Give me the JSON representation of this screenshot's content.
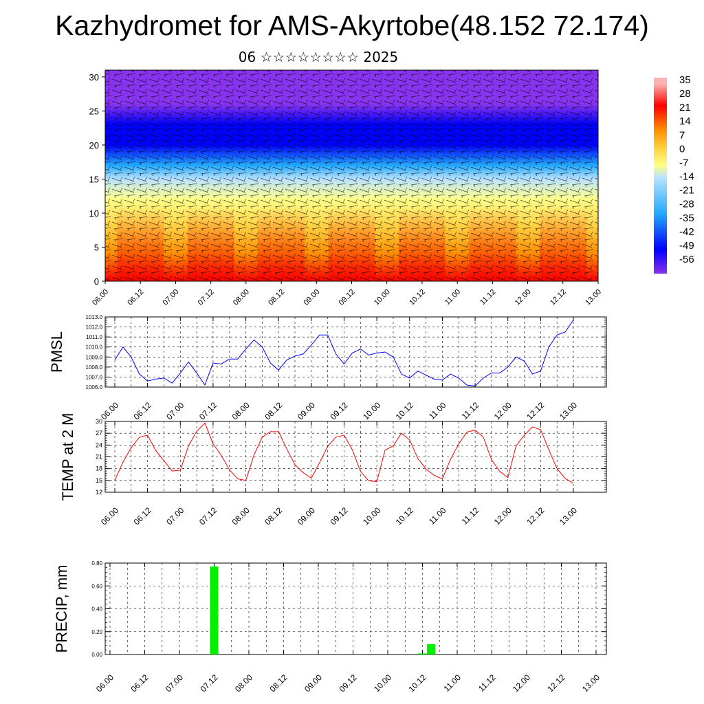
{
  "title": "Kazhydromet for AMS-Akyrtobe(48.152 72.174)",
  "subtitle": "06 ☆☆☆☆☆☆☆☆ 2025",
  "time_ticks": [
    "06.00",
    "06.12",
    "07.00",
    "07.12",
    "08.00",
    "08.12",
    "09.00",
    "09.12",
    "10.00",
    "10.12",
    "11.00",
    "11.12",
    "12.00",
    "12.12",
    "13.00"
  ],
  "chart_data": [
    {
      "type": "heatmap",
      "name": "cross-section",
      "x_ticks": [
        "06.00",
        "06.12",
        "07.00",
        "07.12",
        "08.00",
        "08.12",
        "09.00",
        "09.12",
        "10.00",
        "10.12",
        "11.00",
        "11.12",
        "12.00",
        "12.12",
        "13.00"
      ],
      "y_ticks": [
        0,
        5,
        10,
        15,
        20,
        25,
        30
      ],
      "ylim": [
        0,
        31
      ],
      "overlay": "wind barbs",
      "colorbar": {
        "labels": [
          35,
          28,
          21,
          14,
          7,
          0,
          -7,
          -14,
          -21,
          -28,
          -35,
          -42,
          -49,
          -56
        ],
        "range": [
          -60,
          38
        ],
        "colors": {
          "hot": "#ff0000",
          "warm": "#ff8c00",
          "neutral": "#ffff88",
          "cool": "#22aaff",
          "cold": "#0000ff",
          "coldest": "#8833ee",
          "top": "#ffb3b3"
        }
      },
      "level_temps": [
        {
          "y": 0,
          "value": 30
        },
        {
          "y": 4,
          "value": 22
        },
        {
          "y": 8,
          "value": 10
        },
        {
          "y": 12,
          "value": 2
        },
        {
          "y": 15,
          "value": -8
        },
        {
          "y": 17,
          "value": -22
        },
        {
          "y": 20,
          "value": -32
        },
        {
          "y": 23,
          "value": -42
        },
        {
          "y": 26,
          "value": -52
        },
        {
          "y": 31,
          "value": -58
        }
      ],
      "diurnal_warm_days": [
        "06.12",
        "07.12",
        "08.12",
        "09.12",
        "10.12",
        "11.12",
        "12.12"
      ]
    },
    {
      "type": "line",
      "name": "PMSL",
      "ylabel": "PMSL",
      "ylim": [
        1006.0,
        1013.0
      ],
      "y_ticks": [
        "1006.0",
        "1007.0",
        "1008.0",
        "1009.0",
        "1010.0",
        "1011.0",
        "1012.0",
        "1013.0"
      ],
      "x": [
        0,
        3,
        6,
        9,
        12,
        15,
        18,
        21,
        24,
        27,
        30,
        33,
        36,
        39,
        42,
        45,
        48,
        51,
        54,
        57,
        60,
        63,
        66,
        69,
        72,
        75,
        78,
        81,
        84,
        87,
        90,
        93,
        96,
        99,
        102,
        105,
        108,
        111,
        114,
        117,
        120,
        123,
        126,
        129,
        132,
        135,
        138,
        141,
        144,
        147,
        150,
        153,
        156,
        159,
        162,
        165,
        168
      ],
      "values": [
        1008.7,
        1010.0,
        1009.0,
        1007.3,
        1006.6,
        1006.8,
        1006.9,
        1006.4,
        1007.4,
        1008.5,
        1007.4,
        1006.2,
        1008.4,
        1008.3,
        1008.8,
        1008.8,
        1009.8,
        1010.7,
        1010.0,
        1008.4,
        1007.7,
        1008.7,
        1009.1,
        1009.3,
        1010.2,
        1011.2,
        1011.2,
        1009.3,
        1008.3,
        1009.4,
        1009.8,
        1009.2,
        1009.4,
        1009.5,
        1009.0,
        1007.3,
        1006.9,
        1007.6,
        1007.2,
        1006.8,
        1006.7,
        1007.3,
        1006.9,
        1006.2,
        1006.1,
        1006.9,
        1007.4,
        1007.4,
        1008.0,
        1009.0,
        1008.6,
        1007.3,
        1007.6,
        1010.0,
        1011.2,
        1011.5,
        1012.7
      ],
      "color": "#0000ff"
    },
    {
      "type": "line",
      "name": "TEMP at 2 M",
      "ylabel": "TEMP at 2 M",
      "ylim": [
        12,
        30
      ],
      "y_ticks": [
        "12",
        "15",
        "18",
        "21",
        "24",
        "27",
        "30"
      ],
      "x": [
        0,
        3,
        6,
        9,
        12,
        15,
        18,
        21,
        24,
        27,
        30,
        33,
        36,
        39,
        42,
        45,
        48,
        51,
        54,
        57,
        60,
        63,
        66,
        69,
        72,
        75,
        78,
        81,
        84,
        87,
        90,
        93,
        96,
        99,
        102,
        105,
        108,
        111,
        114,
        117,
        120,
        123,
        126,
        129,
        132,
        135,
        138,
        141,
        144,
        147,
        150,
        153,
        156,
        159,
        162,
        165,
        168
      ],
      "values": [
        15.0,
        19.7,
        23.3,
        26.0,
        26.5,
        22.6,
        20.0,
        17.4,
        17.6,
        23.8,
        27.5,
        29.6,
        24.3,
        21.4,
        17.7,
        15.4,
        15.0,
        21.5,
        26.0,
        27.4,
        27.4,
        23.0,
        19.0,
        17.0,
        15.6,
        19.5,
        23.7,
        26.0,
        26.5,
        22.8,
        17.3,
        14.9,
        14.7,
        22.7,
        23.8,
        27.0,
        25.3,
        20.6,
        17.9,
        16.3,
        15.4,
        20.4,
        24.3,
        27.3,
        27.8,
        26.0,
        20.3,
        17.3,
        15.7,
        23.8,
        26.5,
        28.6,
        27.9,
        22.8,
        18.0,
        15.5,
        14.3
      ],
      "color": "#ff0000"
    },
    {
      "type": "bar",
      "name": "PRECIP",
      "ylabel": "PRECIP, mm",
      "ylim": [
        0.0,
        0.8
      ],
      "y_ticks": [
        "0.00",
        "0.20",
        "0.40",
        "0.60",
        "0.80"
      ],
      "bars": [
        {
          "x": 36,
          "value": 0.77
        },
        {
          "x": 108,
          "value": 0.01
        },
        {
          "x": 111,
          "value": 0.09
        }
      ],
      "color": "#00ee00"
    }
  ]
}
